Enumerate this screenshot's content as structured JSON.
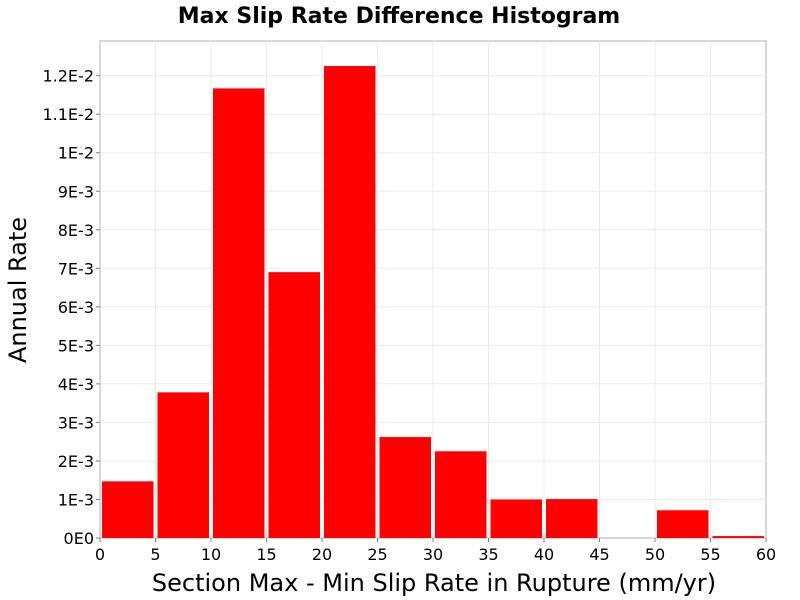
{
  "chart_data": {
    "type": "bar",
    "title": "Max Slip Rate Difference Histogram",
    "xlabel": "Section Max - Min Slip Rate in Rupture (mm/yr)",
    "ylabel": "Annual Rate",
    "bin_width": 5,
    "bins": [
      {
        "x_start": 0,
        "x_end": 5,
        "value": 0.00147
      },
      {
        "x_start": 5,
        "x_end": 10,
        "value": 0.00378
      },
      {
        "x_start": 10,
        "x_end": 15,
        "value": 0.01167
      },
      {
        "x_start": 15,
        "x_end": 20,
        "value": 0.0069
      },
      {
        "x_start": 20,
        "x_end": 25,
        "value": 0.01225
      },
      {
        "x_start": 25,
        "x_end": 30,
        "value": 0.00262
      },
      {
        "x_start": 30,
        "x_end": 35,
        "value": 0.00225
      },
      {
        "x_start": 35,
        "x_end": 40,
        "value": 0.001
      },
      {
        "x_start": 40,
        "x_end": 45,
        "value": 0.00101
      },
      {
        "x_start": 45,
        "x_end": 50,
        "value": 0.0
      },
      {
        "x_start": 50,
        "x_end": 55,
        "value": 0.00072
      },
      {
        "x_start": 55,
        "x_end": 60,
        "value": 5e-05
      }
    ],
    "xlim": [
      0,
      60
    ],
    "ylim": [
      0,
      0.0129
    ],
    "x_ticks": [
      {
        "value": 0,
        "label": "0"
      },
      {
        "value": 5,
        "label": "5"
      },
      {
        "value": 10,
        "label": "10"
      },
      {
        "value": 15,
        "label": "15"
      },
      {
        "value": 20,
        "label": "20"
      },
      {
        "value": 25,
        "label": "25"
      },
      {
        "value": 30,
        "label": "30"
      },
      {
        "value": 35,
        "label": "35"
      },
      {
        "value": 40,
        "label": "40"
      },
      {
        "value": 45,
        "label": "45"
      },
      {
        "value": 50,
        "label": "50"
      },
      {
        "value": 55,
        "label": "55"
      },
      {
        "value": 60,
        "label": "60"
      }
    ],
    "y_ticks": [
      {
        "value": 0,
        "label": "0E0"
      },
      {
        "value": 0.001,
        "label": "1E-3"
      },
      {
        "value": 0.002,
        "label": "2E-3"
      },
      {
        "value": 0.003,
        "label": "3E-3"
      },
      {
        "value": 0.004,
        "label": "4E-3"
      },
      {
        "value": 0.005,
        "label": "5E-3"
      },
      {
        "value": 0.006,
        "label": "6E-3"
      },
      {
        "value": 0.007,
        "label": "7E-3"
      },
      {
        "value": 0.008,
        "label": "8E-3"
      },
      {
        "value": 0.009,
        "label": "9E-3"
      },
      {
        "value": 0.01,
        "label": "1E-2"
      },
      {
        "value": 0.011,
        "label": "1.1E-2"
      },
      {
        "value": 0.012,
        "label": "1.2E-2"
      }
    ],
    "bar_color": "#ff0000",
    "grid": true,
    "legend": false
  }
}
